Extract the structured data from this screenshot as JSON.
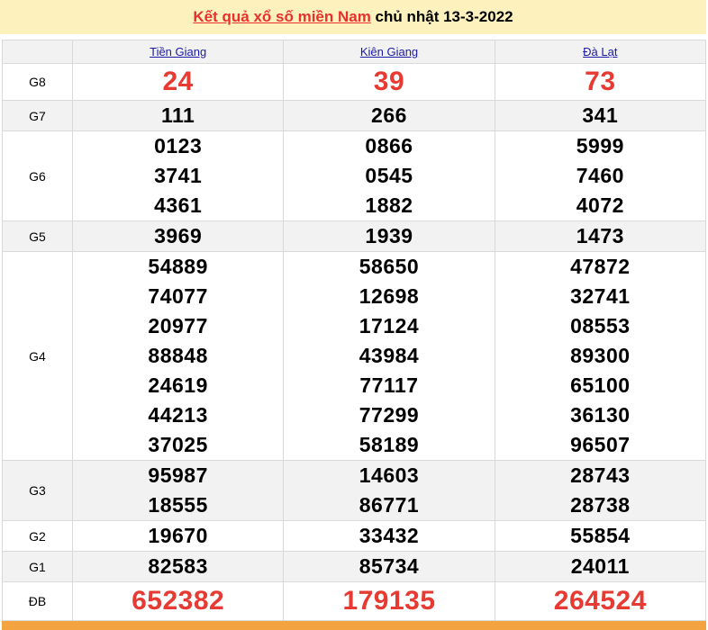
{
  "title": {
    "link": "Kết quả xổ số miền Nam",
    "rest": " chủ nhật 13-3-2022"
  },
  "provinces": [
    "Tiền Giang",
    "Kiên Giang",
    "Đà Lạt"
  ],
  "prizes": [
    {
      "label": "G8",
      "big": true,
      "values": [
        [
          "24"
        ],
        [
          "39"
        ],
        [
          "73"
        ]
      ]
    },
    {
      "label": "G7",
      "values": [
        [
          "111"
        ],
        [
          "266"
        ],
        [
          "341"
        ]
      ]
    },
    {
      "label": "G6",
      "values": [
        [
          "0123",
          "3741",
          "4361"
        ],
        [
          "0866",
          "0545",
          "1882"
        ],
        [
          "5999",
          "7460",
          "4072"
        ]
      ]
    },
    {
      "label": "G5",
      "values": [
        [
          "3969"
        ],
        [
          "1939"
        ],
        [
          "1473"
        ]
      ]
    },
    {
      "label": "G4",
      "values": [
        [
          "54889",
          "74077",
          "20977",
          "88848",
          "24619",
          "44213",
          "37025"
        ],
        [
          "58650",
          "12698",
          "17124",
          "43984",
          "77117",
          "77299",
          "58189"
        ],
        [
          "47872",
          "32741",
          "08553",
          "89300",
          "65100",
          "36130",
          "96507"
        ]
      ]
    },
    {
      "label": "G3",
      "values": [
        [
          "95987",
          "18555"
        ],
        [
          "14603",
          "86771"
        ],
        [
          "28743",
          "28738"
        ]
      ]
    },
    {
      "label": "G2",
      "values": [
        [
          "19670"
        ],
        [
          "33432"
        ],
        [
          "55854"
        ]
      ]
    },
    {
      "label": "G1",
      "values": [
        [
          "82583"
        ],
        [
          "85734"
        ],
        [
          "24011"
        ]
      ]
    },
    {
      "label": "ĐB",
      "big": true,
      "values": [
        [
          "652382"
        ],
        [
          "179135"
        ],
        [
          "264524"
        ]
      ]
    }
  ],
  "colors": {
    "header_bg": "#fdf1be",
    "title_link": "#e8302d",
    "highlight": "#e63a32",
    "footer": "#f3a340"
  }
}
